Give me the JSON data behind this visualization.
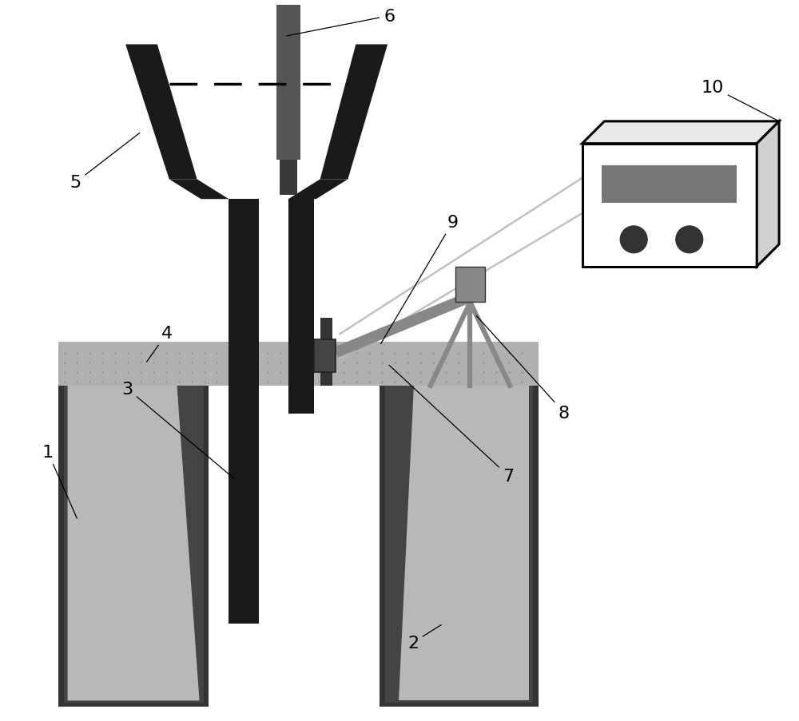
{
  "bg_color": "#ffffff",
  "dark": "#1a1a1a",
  "mid_dark": "#3a3a3a",
  "mid_gray": "#666666",
  "light_gray": "#999999",
  "lighter_gray": "#bbbbbb",
  "device_gray": "#888888",
  "slag_gray": "#b0b0b0",
  "stopper_gray": "#555555",
  "wire_gray": "#c8c8c8"
}
